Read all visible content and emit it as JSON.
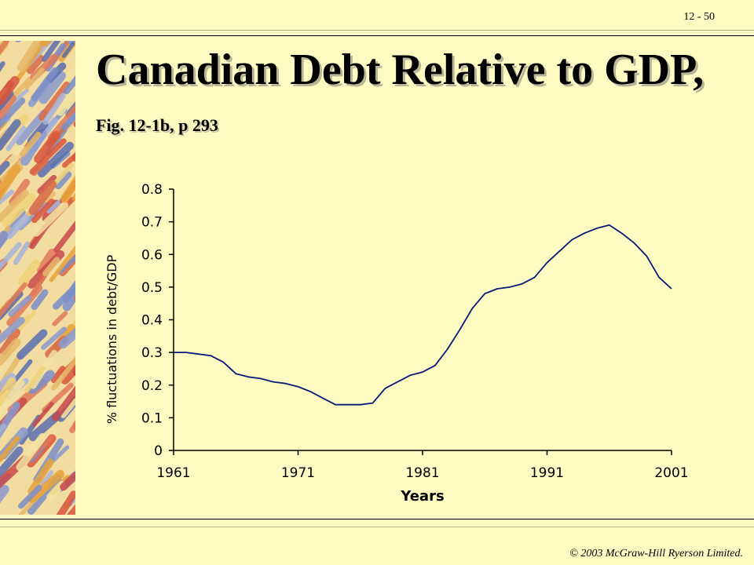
{
  "slide": {
    "number": "12 - 50",
    "title_main": "Canadian Debt Relative to GDP,",
    "title_sub": "Fig. 12-1b, p 293",
    "footer": "© 2003 McGraw-Hill Ryerson Limited."
  },
  "chart_data": {
    "type": "line",
    "title": "",
    "xlabel": "Years",
    "ylabel": "% fluctuations in debt/GDP",
    "xlim": [
      1961,
      2001
    ],
    "ylim": [
      0,
      0.8
    ],
    "xticks": [
      1961,
      1971,
      1981,
      1991,
      2001
    ],
    "xtick_labels": [
      "1961",
      "1971",
      "1981",
      "1991",
      "2001"
    ],
    "yticks": [
      0,
      0.1,
      0.2,
      0.3,
      0.4,
      0.5,
      0.6,
      0.7,
      0.8
    ],
    "ytick_labels": [
      "0",
      "0.1",
      "0.2",
      "0.3",
      "0.4",
      "0.5",
      "0.6",
      "0.7",
      "0.8"
    ],
    "grid": false,
    "line_color": "#0a1a78",
    "series": [
      {
        "x": [
          1961,
          1962,
          1963,
          1964,
          1965,
          1966,
          1967,
          1968,
          1969,
          1970,
          1971,
          1972,
          1973,
          1974,
          1975,
          1976,
          1977,
          1978,
          1979,
          1980,
          1981,
          1982,
          1983,
          1984,
          1985,
          1986,
          1987,
          1988,
          1989,
          1990,
          1991,
          1992,
          1993,
          1994,
          1995,
          1996,
          1997,
          1998,
          1999,
          2000,
          2001
        ],
        "y": [
          0.3,
          0.3,
          0.295,
          0.29,
          0.27,
          0.235,
          0.225,
          0.22,
          0.21,
          0.205,
          0.195,
          0.18,
          0.16,
          0.14,
          0.14,
          0.14,
          0.145,
          0.19,
          0.21,
          0.23,
          0.24,
          0.26,
          0.31,
          0.37,
          0.435,
          0.48,
          0.495,
          0.5,
          0.51,
          0.53,
          0.575,
          0.61,
          0.645,
          0.665,
          0.68,
          0.69,
          0.665,
          0.635,
          0.595,
          0.53,
          0.495
        ]
      }
    ]
  }
}
